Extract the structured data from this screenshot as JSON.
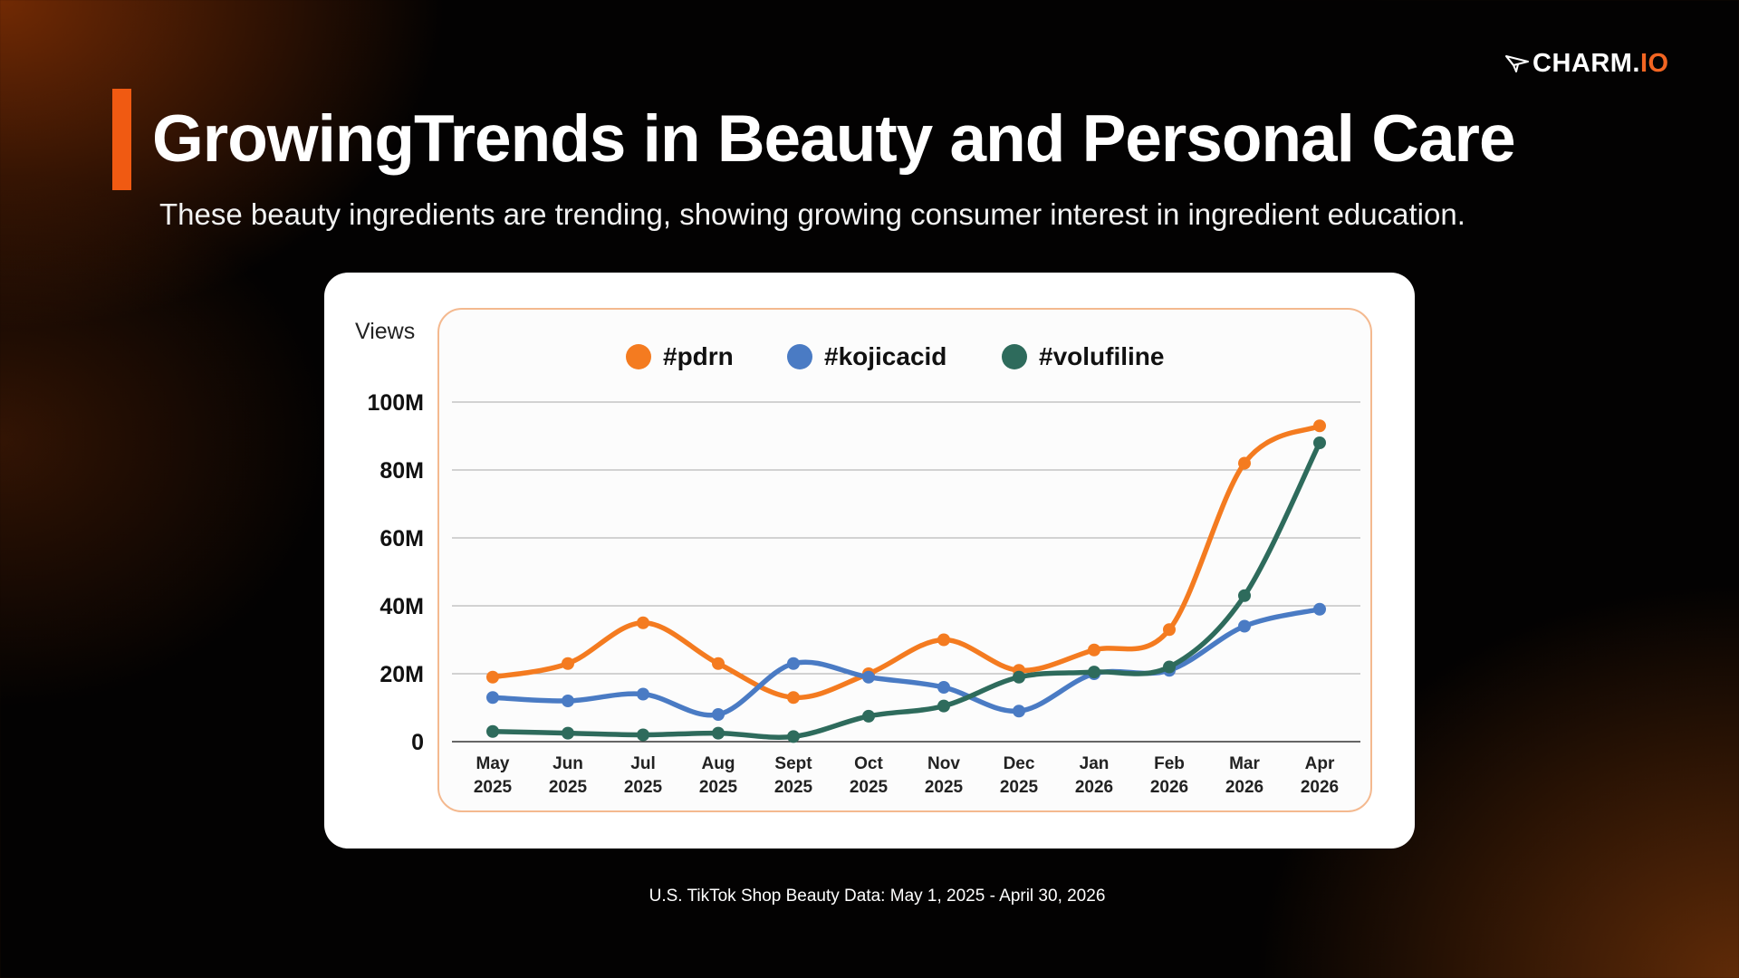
{
  "brand": {
    "logo_icon": "paper-plane-icon",
    "logo_name": "CHARM.",
    "logo_suffix": "IO",
    "logo_suffix_color": "#f26522",
    "accent_color": "#f05a12"
  },
  "header": {
    "title": "GrowingTrends in Beauty and Personal Care",
    "subtitle": "These beauty ingredients are trending, showing growing consumer interest in ingredient education."
  },
  "footer": {
    "source": "U.S. TikTok Shop Beauty Data: May 1, 2025 - April 30, 2026"
  },
  "chart_data": {
    "type": "line",
    "ylabel": "Views",
    "ylim": [
      0,
      100
    ],
    "yticks": [
      {
        "value": 0,
        "label": "0"
      },
      {
        "value": 20,
        "label": "20M"
      },
      {
        "value": 40,
        "label": "40M"
      },
      {
        "value": 60,
        "label": "60M"
      },
      {
        "value": 80,
        "label": "80M"
      },
      {
        "value": 100,
        "label": "100M"
      }
    ],
    "categories": [
      [
        "May",
        "2025"
      ],
      [
        "Jun",
        "2025"
      ],
      [
        "Jul",
        "2025"
      ],
      [
        "Aug",
        "2025"
      ],
      [
        "Sept",
        "2025"
      ],
      [
        "Oct",
        "2025"
      ],
      [
        "Nov",
        "2025"
      ],
      [
        "Dec",
        "2025"
      ],
      [
        "Jan",
        "2026"
      ],
      [
        "Feb",
        "2026"
      ],
      [
        "Mar",
        "2026"
      ],
      [
        "Apr",
        "2026"
      ]
    ],
    "grid": true,
    "legend_position": "top",
    "series": [
      {
        "name": "#pdrn",
        "color": "#f47b20",
        "values": [
          19,
          23,
          35,
          23,
          13,
          20,
          30,
          21,
          27,
          33,
          82,
          93
        ]
      },
      {
        "name": "#kojicacid",
        "color": "#4a7bc4",
        "values": [
          13,
          12,
          14,
          8,
          23,
          19,
          16,
          9,
          20,
          21,
          34,
          39
        ]
      },
      {
        "name": "#volufiline",
        "color": "#2e6b5c",
        "values": [
          3,
          2.5,
          2,
          2.5,
          1.5,
          7.5,
          10.5,
          19,
          20.5,
          22,
          43,
          88
        ]
      }
    ]
  }
}
